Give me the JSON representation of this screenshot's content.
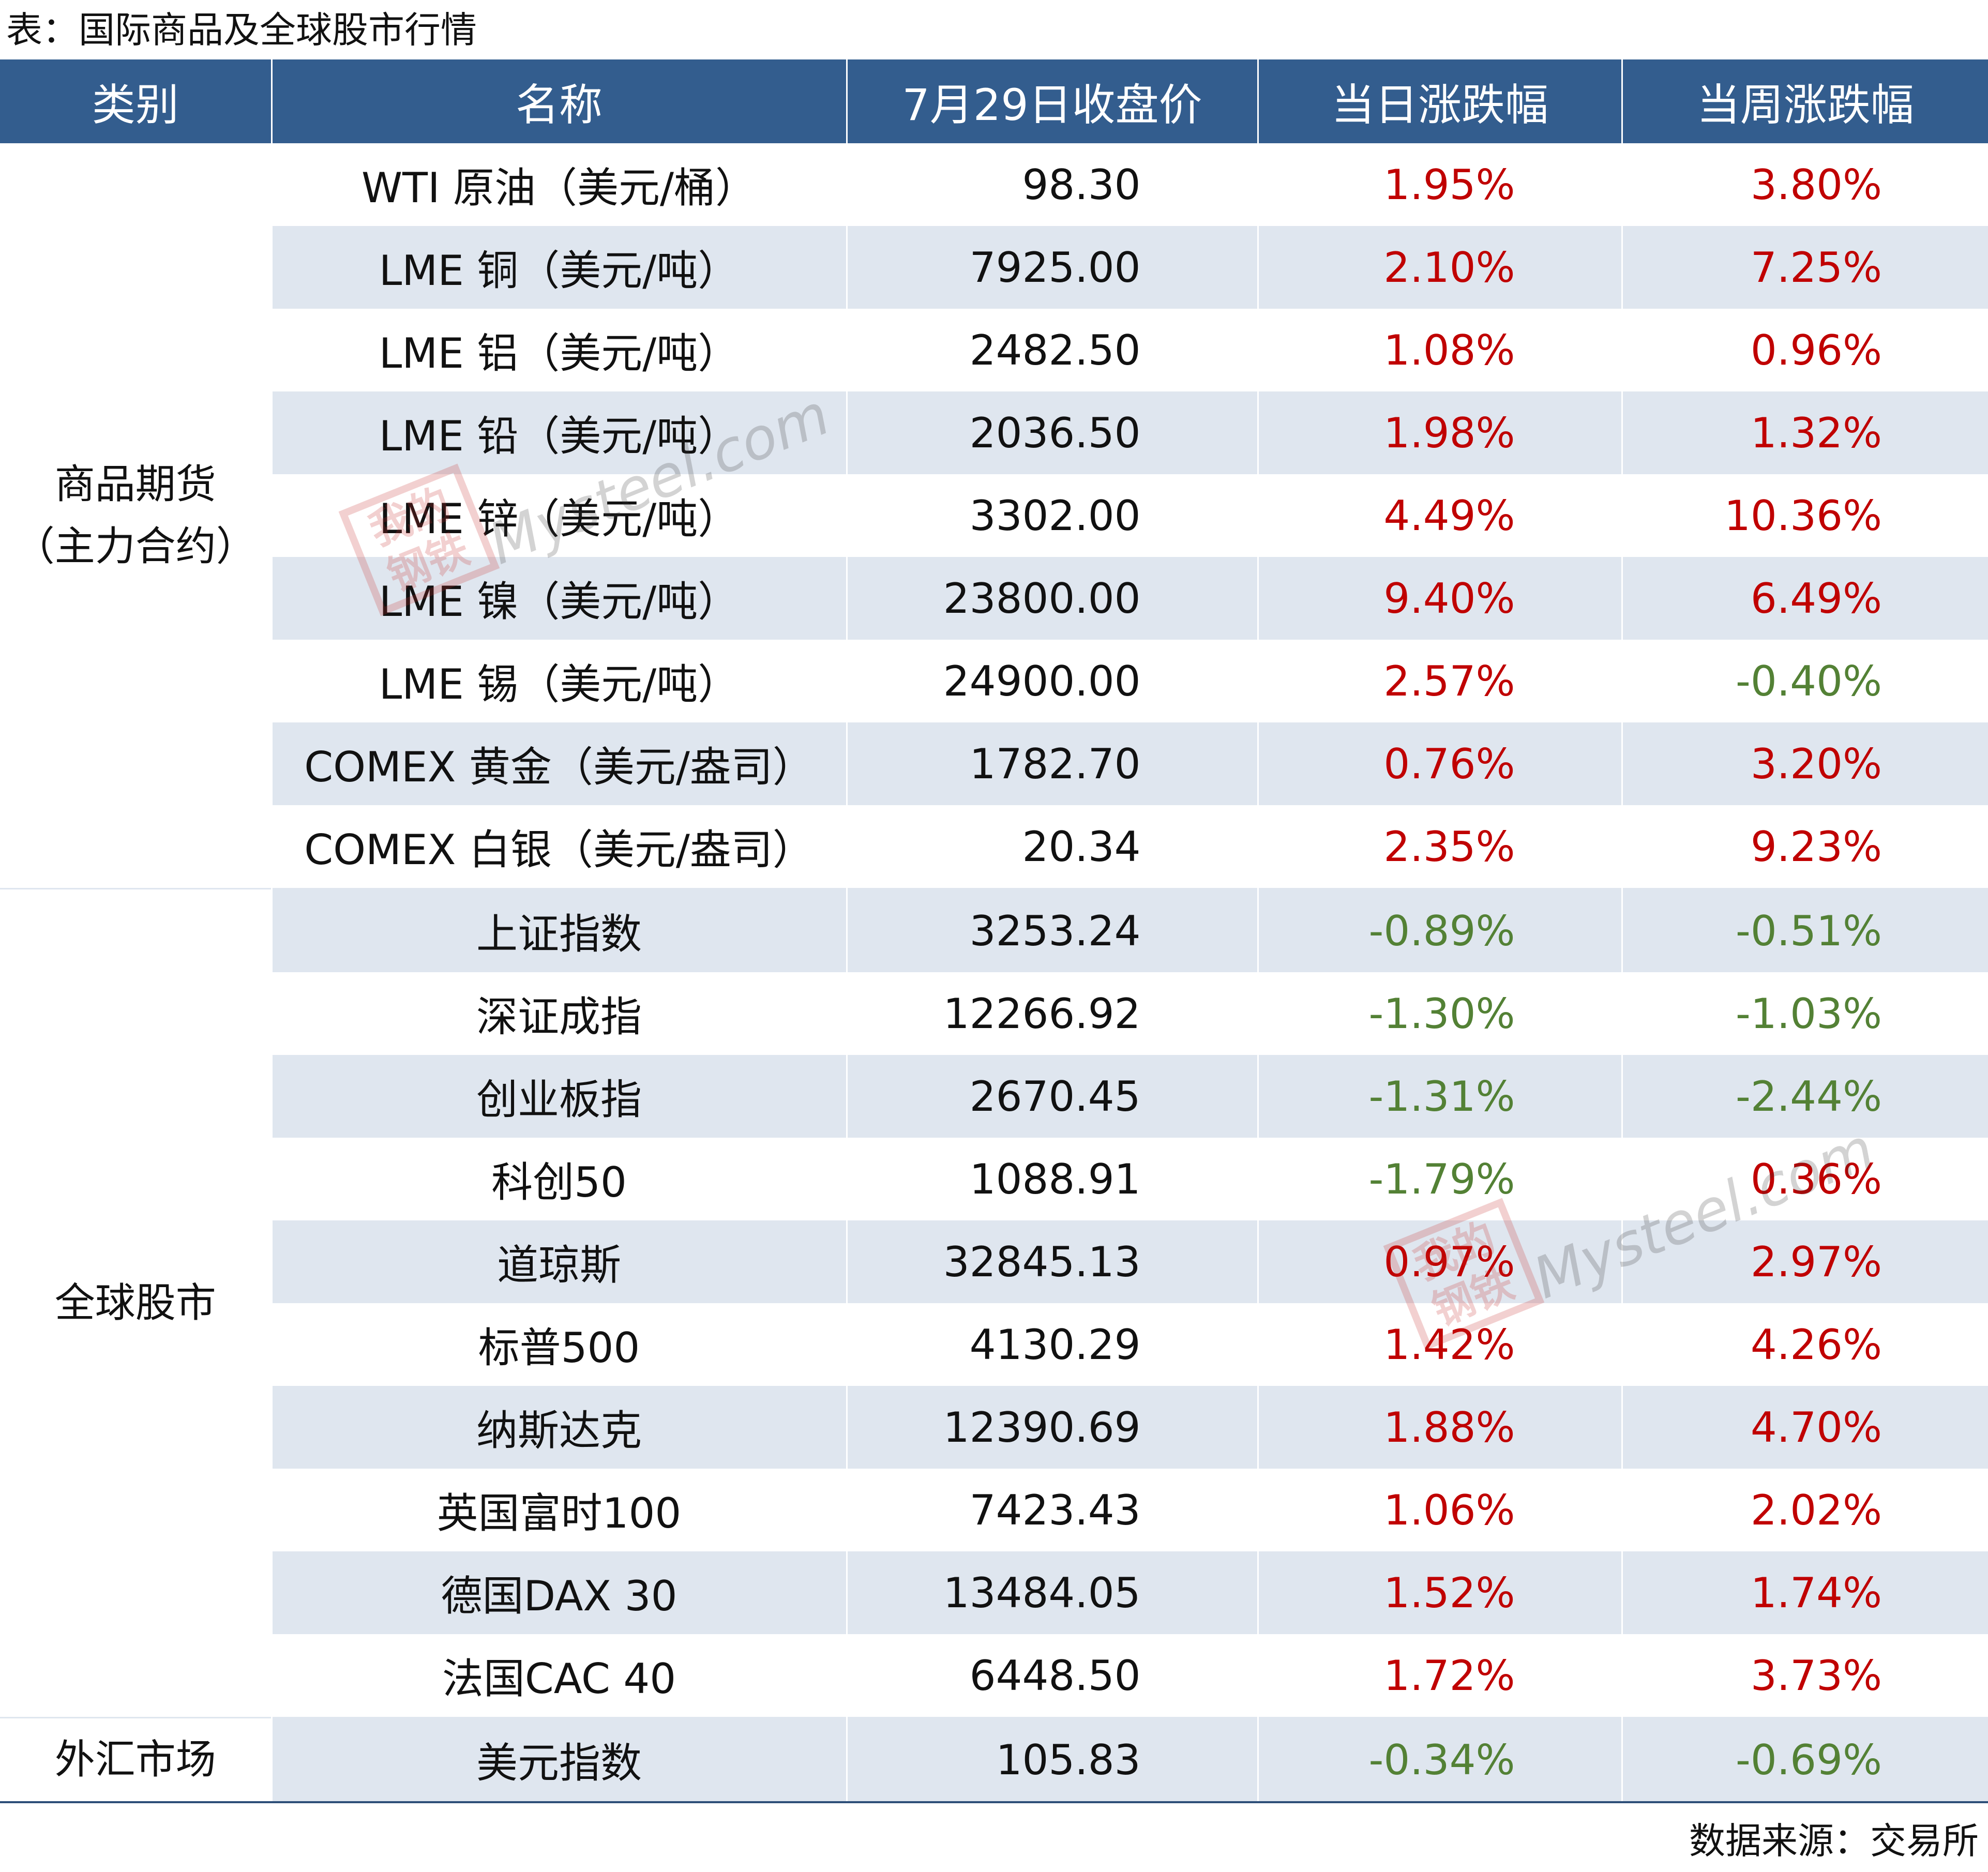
{
  "title": "表：国际商品及全球股市行情",
  "headers": [
    "类别",
    "名称",
    "7月29日收盘价",
    "当日涨跌幅",
    "当周涨跌幅"
  ],
  "groups": [
    {
      "category": "商品期货\n（主力合约）",
      "rows": [
        {
          "name": "WTI 原油（美元/桶）",
          "price": "98.30",
          "day": "1.95%",
          "week": "3.80%"
        },
        {
          "name": "LME 铜（美元/吨）",
          "price": "7925.00",
          "day": "2.10%",
          "week": "7.25%"
        },
        {
          "name": "LME 铝（美元/吨）",
          "price": "2482.50",
          "day": "1.08%",
          "week": "0.96%"
        },
        {
          "name": "LME 铅（美元/吨）",
          "price": "2036.50",
          "day": "1.98%",
          "week": "1.32%"
        },
        {
          "name": "LME 锌（美元/吨）",
          "price": "3302.00",
          "day": "4.49%",
          "week": "10.36%"
        },
        {
          "name": "LME 镍（美元/吨）",
          "price": "23800.00",
          "day": "9.40%",
          "week": "6.49%"
        },
        {
          "name": "LME 锡（美元/吨）",
          "price": "24900.00",
          "day": "2.57%",
          "week": "-0.40%"
        },
        {
          "name": "COMEX 黄金（美元/盎司）",
          "price": "1782.70",
          "day": "0.76%",
          "week": "3.20%"
        },
        {
          "name": "COMEX 白银（美元/盎司）",
          "price": "20.34",
          "day": "2.35%",
          "week": "9.23%"
        }
      ]
    },
    {
      "category": "全球股市",
      "rows": [
        {
          "name": "上证指数",
          "price": "3253.24",
          "day": "-0.89%",
          "week": "-0.51%"
        },
        {
          "name": "深证成指",
          "price": "12266.92",
          "day": "-1.30%",
          "week": "-1.03%"
        },
        {
          "name": "创业板指",
          "price": "2670.45",
          "day": "-1.31%",
          "week": "-2.44%"
        },
        {
          "name": "科创50",
          "price": "1088.91",
          "day": "-1.79%",
          "week": "0.36%"
        },
        {
          "name": "道琼斯",
          "price": "32845.13",
          "day": "0.97%",
          "week": "2.97%"
        },
        {
          "name": "标普500",
          "price": "4130.29",
          "day": "1.42%",
          "week": "4.26%"
        },
        {
          "name": "纳斯达克",
          "price": "12390.69",
          "day": "1.88%",
          "week": "4.70%"
        },
        {
          "name": "英国富时100",
          "price": "7423.43",
          "day": "1.06%",
          "week": "2.02%"
        },
        {
          "name": "德国DAX 30",
          "price": "13484.05",
          "day": "1.52%",
          "week": "1.74%"
        },
        {
          "name": "法国CAC 40",
          "price": "6448.50",
          "day": "1.72%",
          "week": "3.73%"
        }
      ]
    },
    {
      "category": "外汇市场",
      "rows": [
        {
          "name": "美元指数",
          "price": "105.83",
          "day": "-0.34%",
          "week": "-0.69%"
        }
      ]
    }
  ],
  "source": "数据来源：交易所",
  "watermark": {
    "logo": "我的钢铁",
    "text": "Mysteel.com"
  },
  "colors": {
    "header_bg": "#335d8e",
    "row_shade": "#dfe6ef",
    "up": "#c00000",
    "down": "#538135"
  }
}
